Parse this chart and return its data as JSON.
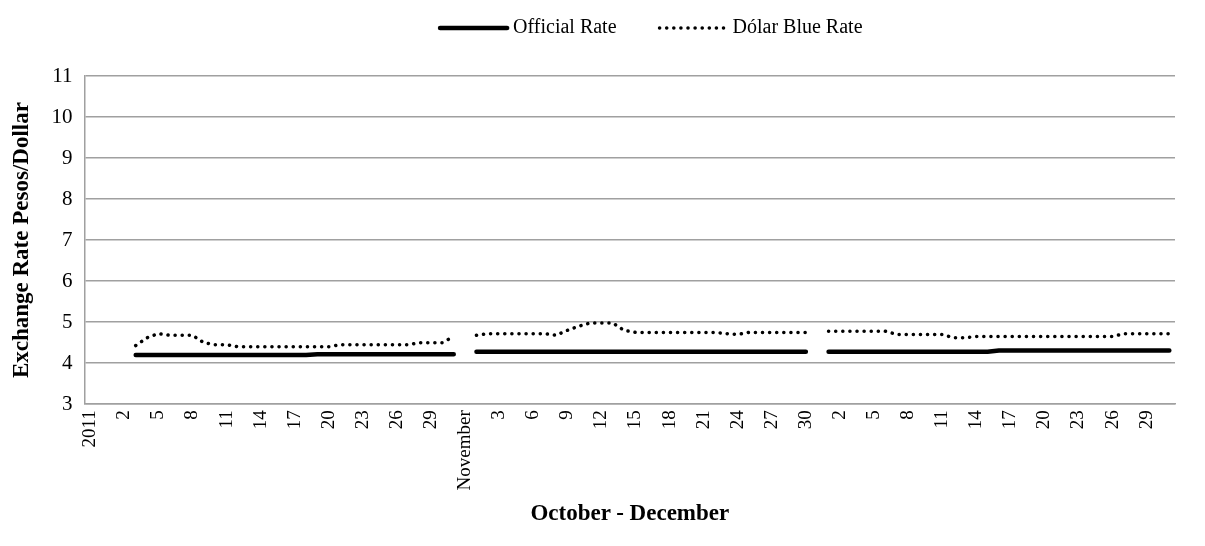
{
  "chart_data": {
    "type": "line",
    "xlabel": "October - December",
    "ylabel": "Exchange Rate Pesos/Dollar",
    "categories": [
      "2011",
      null,
      null,
      "2",
      null,
      null,
      "5",
      null,
      null,
      "8",
      null,
      null,
      "11",
      null,
      null,
      "14",
      null,
      null,
      "17",
      null,
      null,
      "20",
      null,
      null,
      "23",
      null,
      null,
      "26",
      null,
      null,
      "29",
      null,
      null,
      "November",
      null,
      null,
      "3",
      null,
      null,
      "6",
      null,
      null,
      "9",
      null,
      null,
      "12",
      null,
      null,
      "15",
      null,
      null,
      "18",
      null,
      null,
      "21",
      null,
      null,
      "24",
      null,
      null,
      "27",
      null,
      null,
      "30",
      null,
      null,
      "2",
      null,
      null,
      "5",
      null,
      null,
      "8",
      null,
      null,
      "11",
      null,
      null,
      "14",
      null,
      null,
      "17",
      null,
      null,
      "20",
      null,
      null,
      "23",
      null,
      null,
      "26",
      null,
      null,
      "29",
      null,
      null
    ],
    "series": [
      {
        "name": "Official Rate",
        "color": "#000000",
        "line_style": "solid",
        "values": [
          null,
          null,
          null,
          null,
          4.2,
          4.2,
          4.2,
          4.2,
          4.2,
          4.2,
          4.2,
          4.2,
          4.2,
          4.2,
          4.2,
          4.2,
          4.2,
          4.2,
          4.2,
          4.2,
          4.22,
          4.22,
          4.22,
          4.22,
          4.22,
          4.22,
          4.22,
          4.22,
          4.22,
          4.22,
          4.22,
          4.22,
          4.22,
          null,
          4.28,
          4.28,
          4.28,
          4.28,
          4.28,
          4.28,
          4.28,
          4.28,
          4.28,
          4.28,
          4.28,
          4.28,
          4.28,
          4.28,
          4.28,
          4.28,
          4.28,
          4.28,
          4.28,
          4.28,
          4.28,
          4.28,
          4.28,
          4.28,
          4.28,
          4.28,
          4.28,
          4.28,
          4.28,
          4.28,
          null,
          4.28,
          4.28,
          4.28,
          4.28,
          4.28,
          4.28,
          4.28,
          4.28,
          4.28,
          4.28,
          4.28,
          4.28,
          4.28,
          4.28,
          4.28,
          4.31,
          4.31,
          4.31,
          4.31,
          4.31,
          4.31,
          4.31,
          4.31,
          4.31,
          4.31,
          4.31,
          4.31,
          4.31,
          4.31,
          4.31,
          4.31
        ]
      },
      {
        "name": "Dólar Blue Rate",
        "color": "#000000",
        "line_style": "dotted",
        "values": [
          null,
          null,
          null,
          null,
          4.43,
          4.62,
          4.72,
          4.68,
          4.68,
          4.68,
          4.5,
          4.45,
          4.45,
          4.4,
          4.4,
          4.4,
          4.4,
          4.4,
          4.4,
          4.4,
          4.4,
          4.4,
          4.45,
          4.45,
          4.45,
          4.45,
          4.45,
          4.45,
          4.45,
          4.5,
          4.5,
          4.5,
          4.65,
          null,
          4.68,
          4.72,
          4.72,
          4.72,
          4.72,
          4.72,
          4.72,
          4.68,
          4.8,
          4.9,
          4.98,
          4.98,
          4.98,
          4.8,
          4.75,
          4.75,
          4.75,
          4.75,
          4.75,
          4.75,
          4.75,
          4.75,
          4.72,
          4.7,
          4.75,
          4.75,
          4.75,
          4.75,
          4.75,
          4.75,
          null,
          4.78,
          4.78,
          4.78,
          4.78,
          4.78,
          4.78,
          4.7,
          4.7,
          4.7,
          4.7,
          4.7,
          4.62,
          4.62,
          4.65,
          4.65,
          4.65,
          4.65,
          4.65,
          4.65,
          4.65,
          4.65,
          4.65,
          4.65,
          4.65,
          4.65,
          4.65,
          4.72,
          4.72,
          4.72,
          4.72,
          4.72
        ]
      }
    ],
    "ylim": [
      3,
      11
    ],
    "yticks": [
      3,
      4,
      5,
      6,
      7,
      8,
      9,
      10,
      11
    ],
    "grid": "y",
    "legend": "top"
  }
}
